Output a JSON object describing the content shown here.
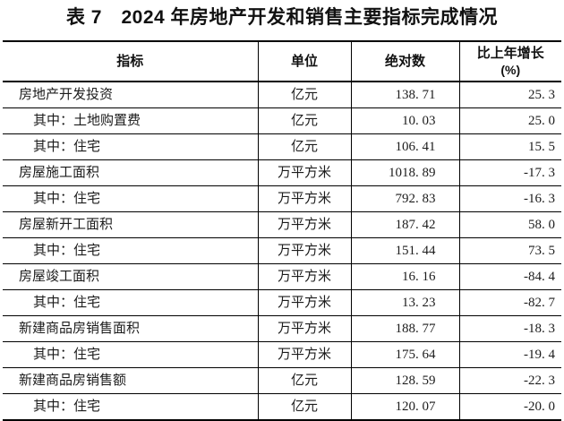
{
  "title": "表 7　2024 年房地产开发和销售主要指标完成情况",
  "table": {
    "header": {
      "indicator": "指标",
      "unit": "单位",
      "absolute": "绝对数",
      "growth_line1": "比上年增长",
      "growth_line2": "(%)"
    },
    "rows": [
      {
        "indicator": "房地产开发投资",
        "indent": false,
        "unit": "亿元",
        "absolute": "138. 71",
        "growth": "25. 3"
      },
      {
        "indicator": "其中：土地购置费",
        "indent": true,
        "unit": "亿元",
        "absolute": "10. 03",
        "growth": "25. 0"
      },
      {
        "indicator": "其中：住宅",
        "indent": true,
        "unit": "亿元",
        "absolute": "106. 41",
        "growth": "15. 5"
      },
      {
        "indicator": "房屋施工面积",
        "indent": false,
        "unit": "万平方米",
        "absolute": "1018. 89",
        "growth": "-17. 3"
      },
      {
        "indicator": "其中：住宅",
        "indent": true,
        "unit": "万平方米",
        "absolute": "792. 83",
        "growth": "-16. 3"
      },
      {
        "indicator": "房屋新开工面积",
        "indent": false,
        "unit": "万平方米",
        "absolute": "187. 42",
        "growth": "58. 0"
      },
      {
        "indicator": "其中：住宅",
        "indent": true,
        "unit": "万平方米",
        "absolute": "151. 44",
        "growth": "73. 5"
      },
      {
        "indicator": "房屋竣工面积",
        "indent": false,
        "unit": "万平方米",
        "absolute": "16. 16",
        "growth": "-84. 4"
      },
      {
        "indicator": "其中：住宅",
        "indent": true,
        "unit": "万平方米",
        "absolute": "13. 23",
        "growth": "-82. 7"
      },
      {
        "indicator": "新建商品房销售面积",
        "indent": false,
        "unit": "万平方米",
        "absolute": "188. 77",
        "growth": "-18. 3"
      },
      {
        "indicator": "其中：住宅",
        "indent": true,
        "unit": "万平方米",
        "absolute": "175. 64",
        "growth": "-19. 4"
      },
      {
        "indicator": "新建商品房销售额",
        "indent": false,
        "unit": "亿元",
        "absolute": "128. 59",
        "growth": "-22. 3"
      },
      {
        "indicator": "其中：住宅",
        "indent": true,
        "unit": "亿元",
        "absolute": "120. 07",
        "growth": "-20. 0"
      }
    ]
  }
}
